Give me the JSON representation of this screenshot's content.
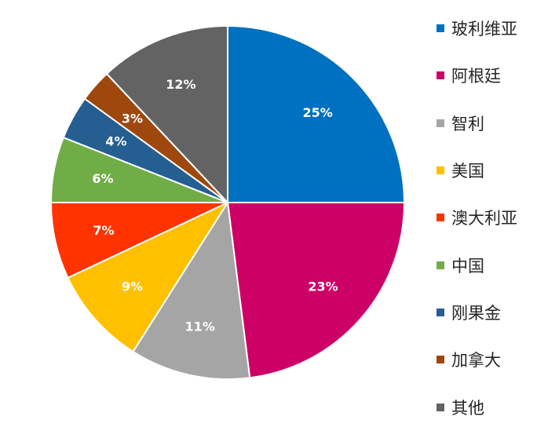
{
  "chart_data": {
    "type": "pie",
    "title": "",
    "legend_position": "right",
    "slices": [
      {
        "label": "玻利维亚",
        "value": 25,
        "value_label": "25%",
        "color": "#0070C0"
      },
      {
        "label": "阿根廷",
        "value": 23,
        "value_label": "23%",
        "color": "#CC0066"
      },
      {
        "label": "智利",
        "value": 11,
        "value_label": "11%",
        "color": "#A5A5A5"
      },
      {
        "label": "美国",
        "value": 9,
        "value_label": "9%",
        "color": "#FFC000"
      },
      {
        "label": "澳大利亚",
        "value": 7,
        "value_label": "7%",
        "color": "#FF3300"
      },
      {
        "label": "中国",
        "value": 6,
        "value_label": "6%",
        "color": "#70AD47"
      },
      {
        "label": "刚果金",
        "value": 4,
        "value_label": "4%",
        "color": "#255E91"
      },
      {
        "label": "加拿大",
        "value": 3,
        "value_label": "3%",
        "color": "#9E480E"
      },
      {
        "label": "其他",
        "value": 12,
        "value_label": "12%",
        "color": "#636363"
      }
    ]
  }
}
